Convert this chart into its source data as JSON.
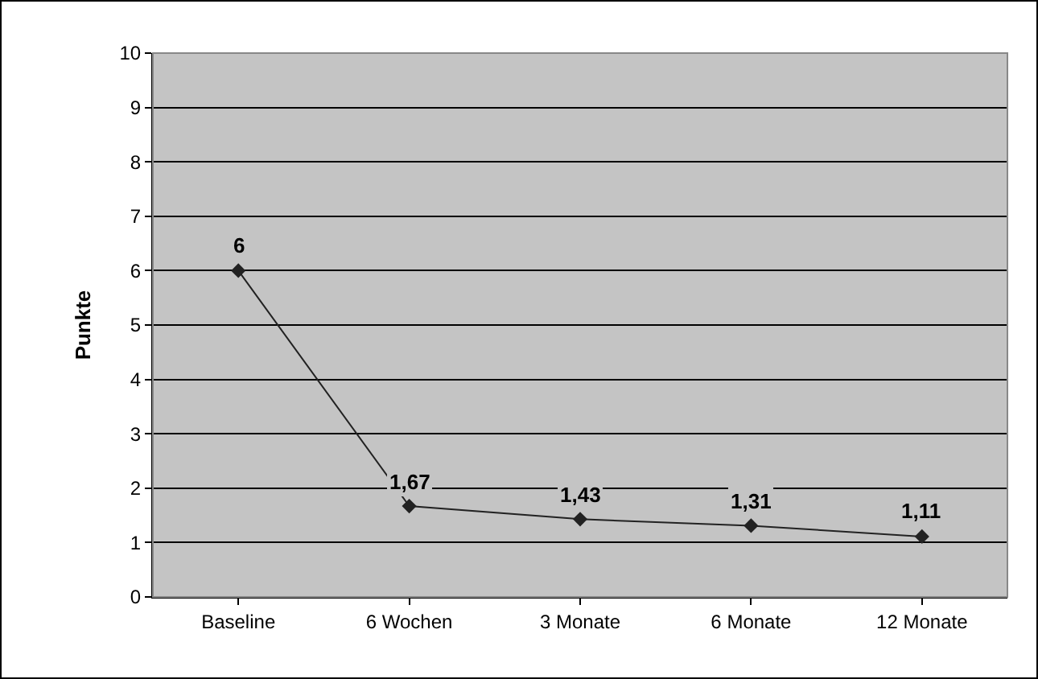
{
  "chart_data": {
    "type": "line",
    "ylabel": "Punkte",
    "categories": [
      "Baseline",
      "6 Wochen",
      "3 Monate",
      "6 Monate",
      "12 Monate"
    ],
    "values": [
      6,
      1.67,
      1.43,
      1.31,
      1.11
    ],
    "value_labels": [
      "6",
      "1,67",
      "1,43",
      "1,31",
      "1,11"
    ],
    "color": "#222222",
    "marker": "diamond",
    "line_style": "solid",
    "ylim": [
      0,
      10
    ],
    "yticks": [
      0,
      1,
      2,
      3,
      4,
      5,
      6,
      7,
      8,
      9,
      10
    ],
    "grid": "y"
  }
}
